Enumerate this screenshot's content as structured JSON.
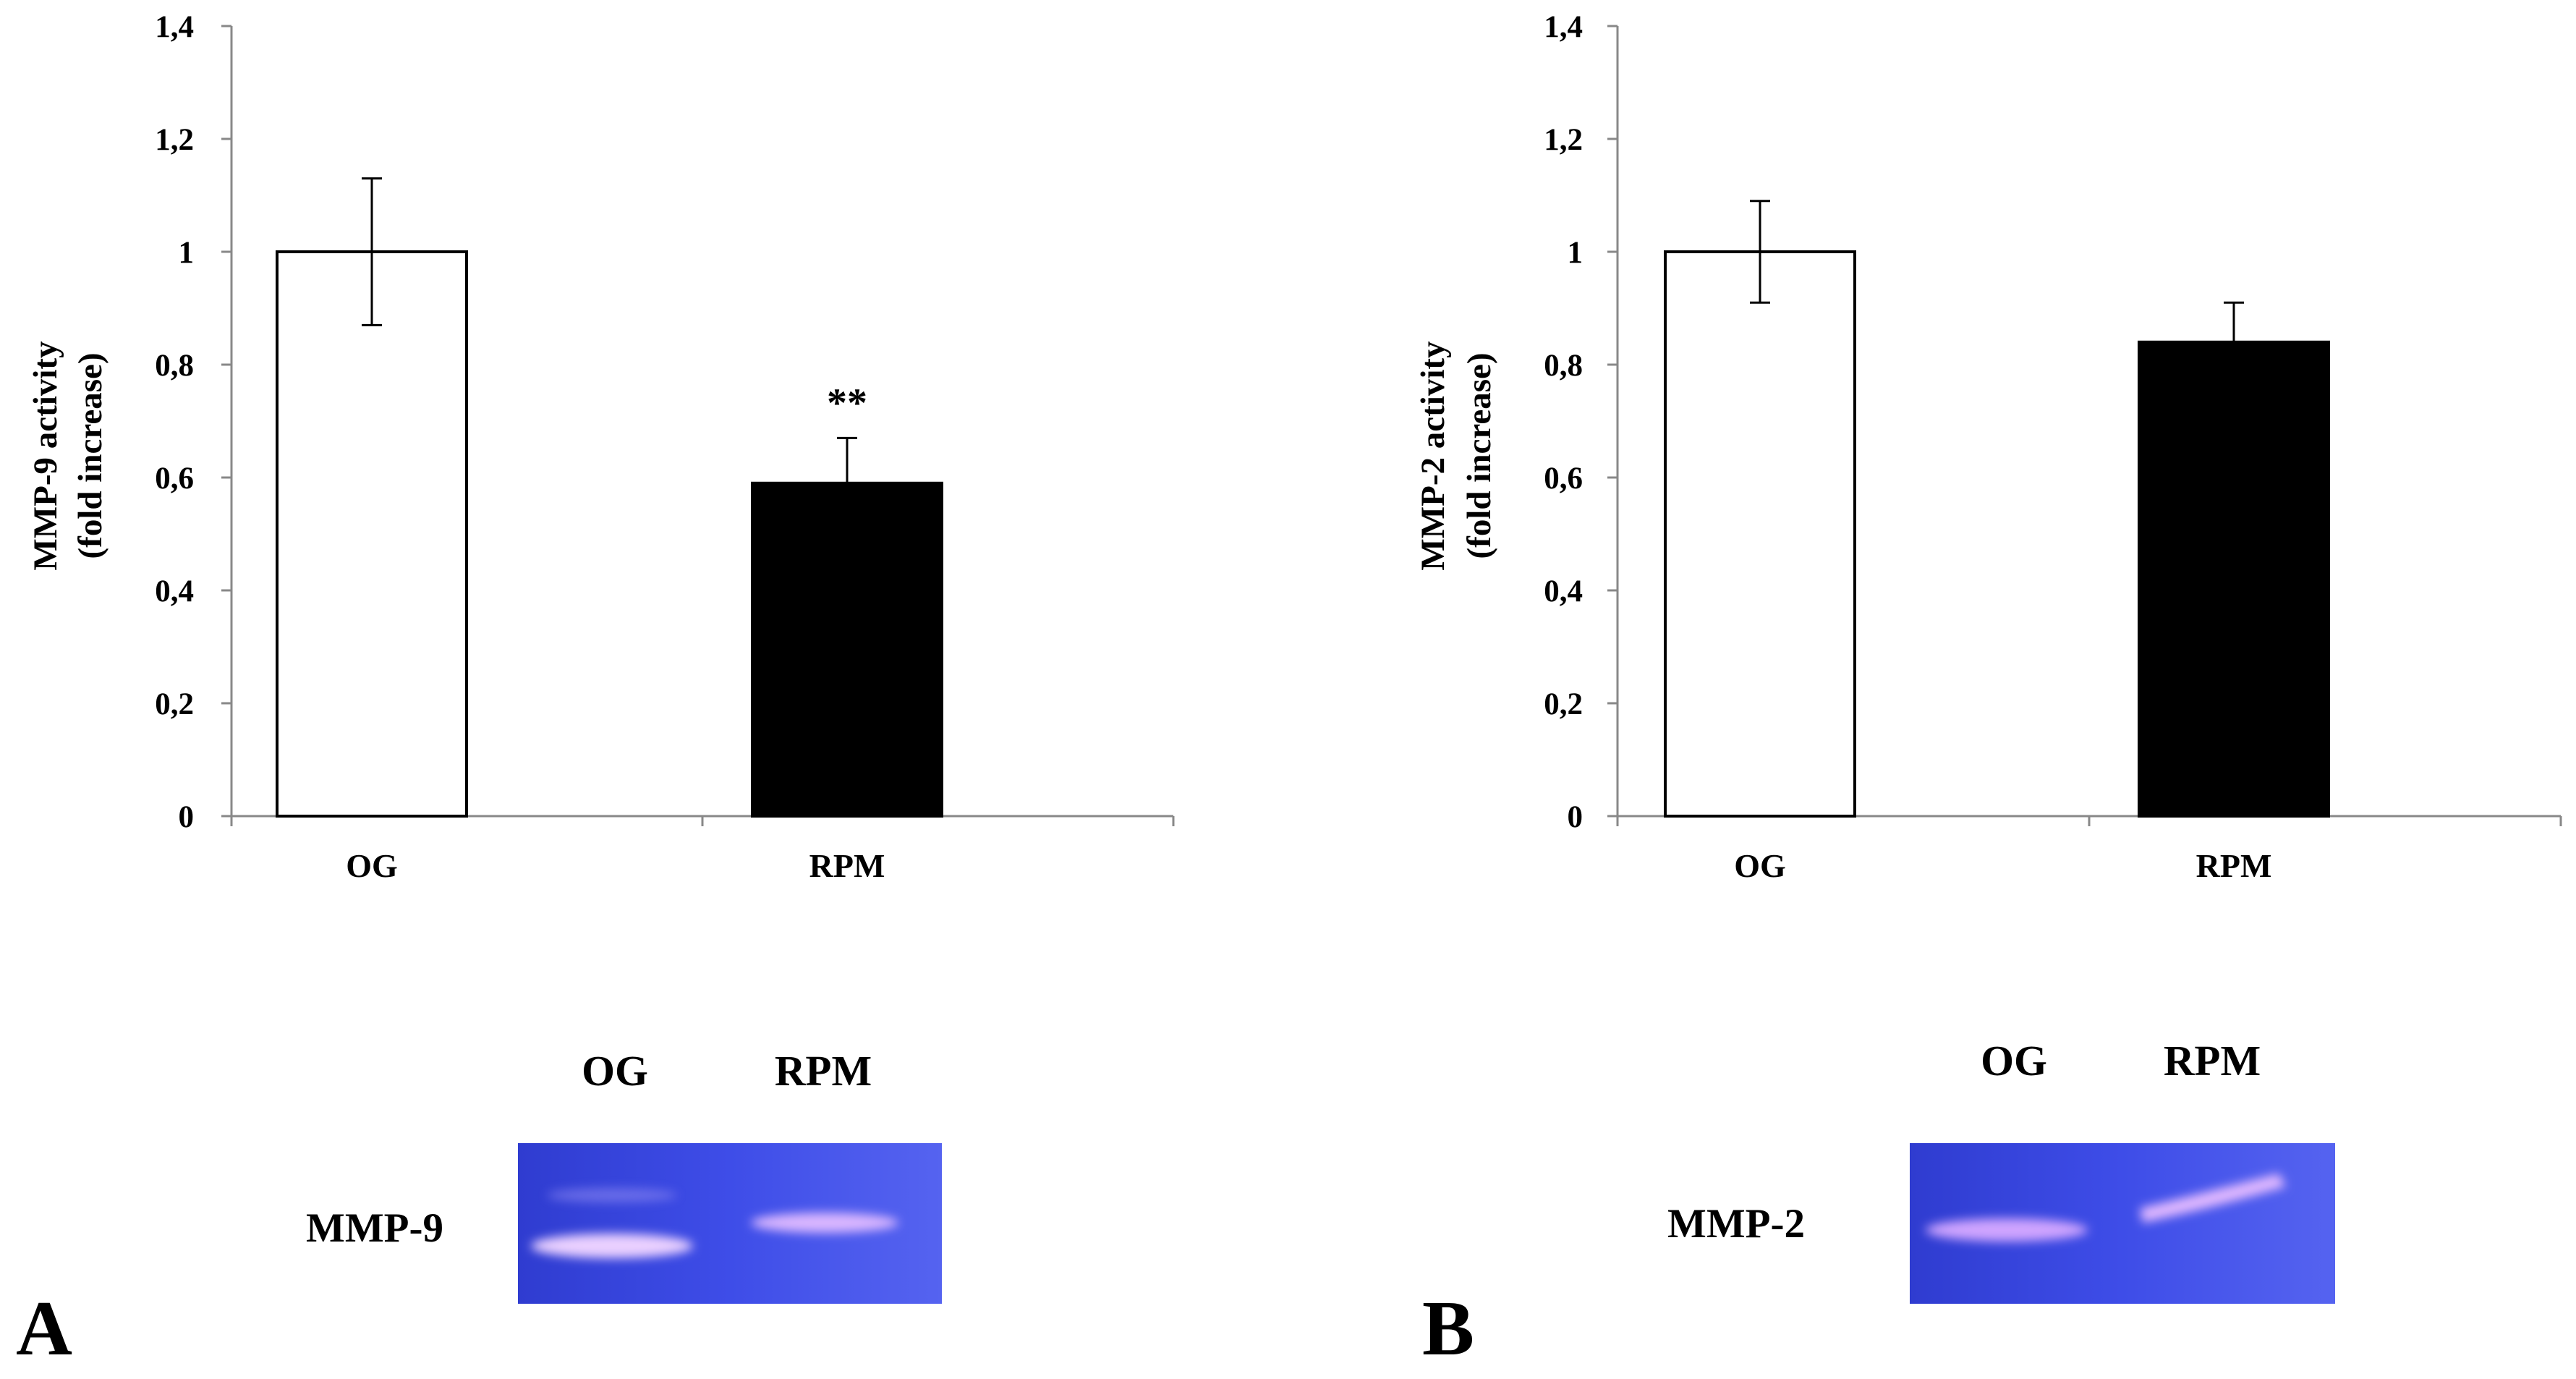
{
  "chart_data": [
    {
      "type": "bar",
      "panel": "A",
      "categories": [
        "OG",
        "RPM"
      ],
      "values": [
        1.0,
        0.59
      ],
      "errors": [
        0.13,
        0.08
      ],
      "bar_colors": [
        "#ffffff",
        "#000000"
      ],
      "annotations": [
        "",
        "**"
      ],
      "ylabel_line1": "MMP-9 activity",
      "ylabel_line2": "(fold increase)",
      "ylim": [
        0,
        1.4
      ],
      "yticks": [
        "0",
        "0,2",
        "0,4",
        "0,6",
        "0,8",
        "1",
        "1,2",
        "1,4"
      ],
      "grid": false
    },
    {
      "type": "bar",
      "panel": "B",
      "categories": [
        "OG",
        "RPM"
      ],
      "values": [
        1.0,
        0.84
      ],
      "errors": [
        0.09,
        0.07
      ],
      "bar_colors": [
        "#ffffff",
        "#000000"
      ],
      "annotations": [
        "",
        ""
      ],
      "ylabel_line1": "MMP-2 activity",
      "ylabel_line2": "(fold increase)",
      "ylim": [
        0,
        1.4
      ],
      "yticks": [
        "0",
        "0,2",
        "0,4",
        "0,6",
        "0,8",
        "1",
        "1,2",
        "1,4"
      ],
      "grid": false
    }
  ],
  "gels": [
    {
      "panel": "A",
      "name": "MMP-9",
      "lanes": [
        "OG",
        "RPM"
      ],
      "band_color": "#e7b3ff",
      "gel_color": "#3c4be6"
    },
    {
      "panel": "B",
      "name": "MMP-2",
      "lanes": [
        "OG",
        "RPM"
      ],
      "band_color": "#d9a6ff",
      "gel_color": "#3848e0"
    }
  ]
}
